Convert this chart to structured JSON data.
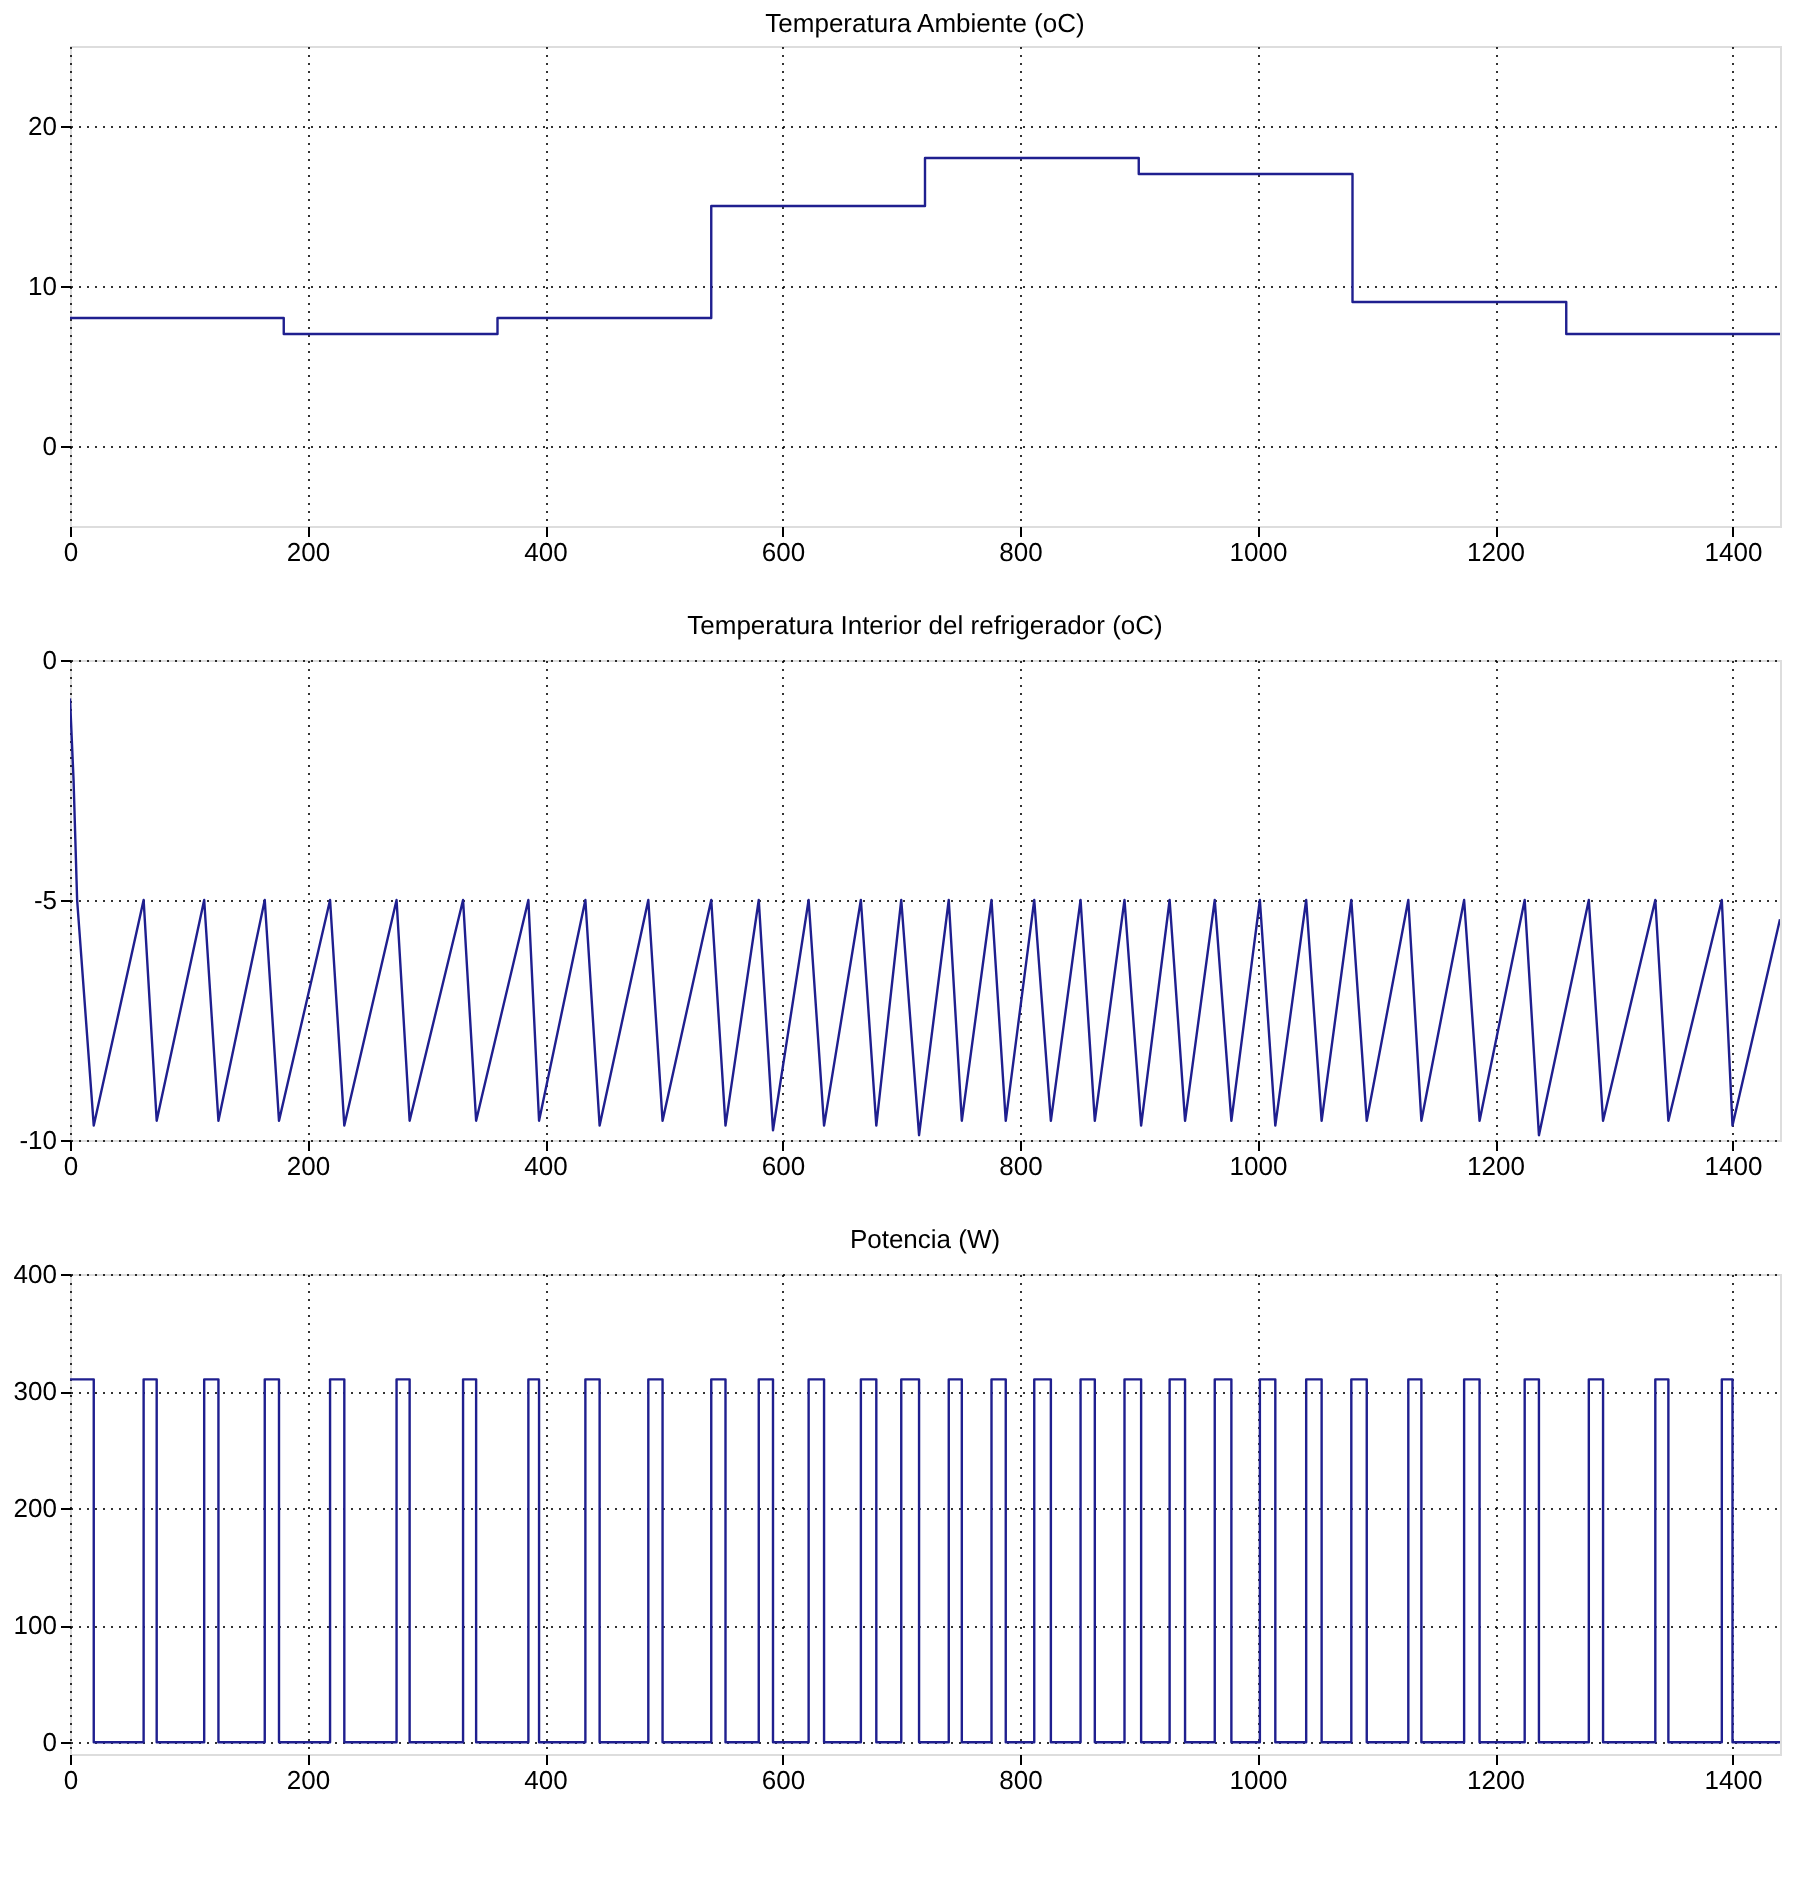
{
  "chart_data": [
    {
      "type": "step",
      "title": "Temperatura Ambiente (oC)",
      "xlim": [
        0,
        1440
      ],
      "xticks": [
        0,
        200,
        400,
        600,
        800,
        1000,
        1200,
        1400
      ],
      "ylim": [
        -5,
        25
      ],
      "yticks": [
        0,
        10,
        20
      ],
      "grid": true,
      "series": [
        {
          "color": "#1f1f8f",
          "x": [
            0,
            180,
            360,
            540,
            720,
            900,
            1080,
            1260,
            1440
          ],
          "values": [
            8,
            7,
            8,
            15,
            18,
            17,
            9,
            7,
            7
          ]
        }
      ]
    },
    {
      "type": "line",
      "title": "Temperatura Interior del refrigerador (oC)",
      "xlim": [
        0,
        1440
      ],
      "xticks": [
        0,
        200,
        400,
        600,
        800,
        1000,
        1200,
        1400
      ],
      "ylim": [
        -10,
        0
      ],
      "yticks": [
        -10,
        -5,
        0
      ],
      "grid": true,
      "series": [
        {
          "color": "#1f1f8f",
          "x": [
            0,
            3,
            6,
            20,
            62,
            73,
            113,
            125,
            164,
            176,
            219,
            231,
            275,
            286,
            331,
            342,
            386,
            395,
            434,
            446,
            487,
            499,
            540,
            552,
            580,
            592,
            622,
            635,
            666,
            679,
            700,
            715,
            740,
            751,
            776,
            788,
            812,
            826,
            851,
            863,
            888,
            902,
            926,
            939,
            964,
            978,
            1002,
            1015,
            1041,
            1054,
            1079,
            1092,
            1127,
            1138,
            1174,
            1187,
            1225,
            1237,
            1279,
            1291,
            1335,
            1346,
            1391,
            1400,
            1440
          ],
          "values": [
            -0.8,
            -2.5,
            -5,
            -9.7,
            -5,
            -9.6,
            -5,
            -9.6,
            -5,
            -9.6,
            -5,
            -9.7,
            -5,
            -9.6,
            -5,
            -9.6,
            -5,
            -9.6,
            -5,
            -9.7,
            -5,
            -9.6,
            -5,
            -9.7,
            -5,
            -9.8,
            -5,
            -9.7,
            -5,
            -9.7,
            -5,
            -9.9,
            -5,
            -9.6,
            -5,
            -9.6,
            -5,
            -9.6,
            -5,
            -9.6,
            -5,
            -9.7,
            -5,
            -9.6,
            -5,
            -9.6,
            -5,
            -9.7,
            -5,
            -9.6,
            -5,
            -9.6,
            -5,
            -9.6,
            -5,
            -9.6,
            -5,
            -9.9,
            -5,
            -9.6,
            -5,
            -9.6,
            -5,
            -9.7,
            -5.4
          ]
        }
      ]
    },
    {
      "type": "step",
      "title": "Potencia (W)",
      "xlim": [
        0,
        1440
      ],
      "xticks": [
        0,
        200,
        400,
        600,
        800,
        1000,
        1200,
        1400
      ],
      "ylim": [
        -10,
        400
      ],
      "yticks": [
        0,
        100,
        200,
        300,
        400
      ],
      "grid": true,
      "series": [
        {
          "color": "#1f1f8f",
          "x": [
            0,
            20,
            62,
            73,
            113,
            125,
            164,
            176,
            219,
            231,
            275,
            286,
            331,
            342,
            386,
            395,
            434,
            446,
            487,
            499,
            540,
            552,
            580,
            592,
            622,
            635,
            666,
            679,
            700,
            715,
            740,
            751,
            776,
            788,
            812,
            826,
            851,
            863,
            888,
            902,
            926,
            939,
            964,
            978,
            1002,
            1015,
            1041,
            1054,
            1079,
            1092,
            1127,
            1138,
            1174,
            1187,
            1225,
            1237,
            1279,
            1291,
            1335,
            1346,
            1391,
            1400,
            1440
          ],
          "values": [
            310,
            0,
            310,
            0,
            310,
            0,
            310,
            0,
            310,
            0,
            310,
            0,
            310,
            0,
            310,
            0,
            310,
            0,
            310,
            0,
            310,
            0,
            310,
            0,
            310,
            0,
            310,
            0,
            310,
            0,
            310,
            0,
            310,
            0,
            310,
            0,
            310,
            0,
            310,
            0,
            310,
            0,
            310,
            0,
            310,
            0,
            310,
            0,
            310,
            0,
            310,
            0,
            310,
            0,
            310,
            0,
            310,
            0,
            310,
            0,
            310,
            0,
            0
          ]
        }
      ]
    }
  ]
}
